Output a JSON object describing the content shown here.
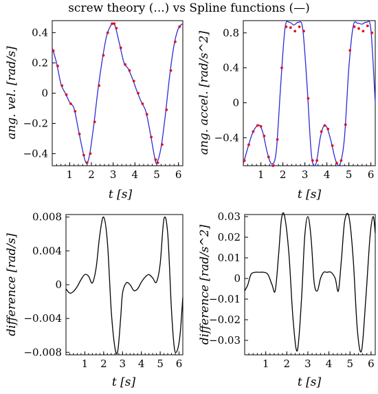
{
  "title": "screw theory (...) vs Spline functions (—)",
  "chart_data": [
    {
      "type": "line",
      "xlabel": "t [s]",
      "ylabel": "ang. vel. [rad/s]",
      "xlim": [
        0.2,
        6.2
      ],
      "ylim": [
        -0.48,
        0.48
      ],
      "xticks": [
        "1",
        "2",
        "3",
        "4",
        "5",
        "6"
      ],
      "yticks": [
        "0.4",
        "0.2",
        "0",
        "-0.2",
        "-0.4"
      ],
      "series": [
        {
          "style": "line",
          "color": "#2b2bd6",
          "x": [
            0.2,
            0.4,
            0.6,
            0.8,
            1.0,
            1.2,
            1.4,
            1.6,
            1.75,
            1.9,
            2.1,
            2.3,
            2.5,
            2.7,
            2.9,
            3.0,
            3.1,
            3.3,
            3.5,
            3.7,
            3.9,
            4.1,
            4.3,
            4.5,
            4.7,
            4.9,
            5.0,
            5.2,
            5.4,
            5.6,
            5.8,
            6.0,
            6.2
          ],
          "y": [
            0.3,
            0.2,
            0.06,
            0.0,
            -0.06,
            -0.1,
            -0.24,
            -0.38,
            -0.46,
            -0.42,
            -0.22,
            0.02,
            0.22,
            0.38,
            0.45,
            0.46,
            0.44,
            0.32,
            0.2,
            0.16,
            0.09,
            0.01,
            -0.06,
            -0.12,
            -0.26,
            -0.42,
            -0.46,
            -0.36,
            -0.14,
            0.12,
            0.32,
            0.43,
            0.46
          ]
        },
        {
          "style": "dots",
          "color": "#e0101a",
          "x": [
            0.25,
            0.45,
            0.65,
            0.85,
            1.05,
            1.25,
            1.45,
            1.65,
            1.8,
            1.95,
            2.15,
            2.35,
            2.55,
            2.75,
            2.95,
            3.05,
            3.15,
            3.35,
            3.55,
            3.75,
            3.95,
            4.15,
            4.35,
            4.55,
            4.75,
            4.95,
            5.05,
            5.25,
            5.45,
            5.65,
            5.85,
            6.05
          ],
          "y": [
            0.28,
            0.18,
            0.05,
            -0.01,
            -0.07,
            -0.12,
            -0.27,
            -0.41,
            -0.46,
            -0.4,
            -0.19,
            0.05,
            0.25,
            0.4,
            0.46,
            0.46,
            0.43,
            0.3,
            0.19,
            0.15,
            0.08,
            0.0,
            -0.07,
            -0.14,
            -0.29,
            -0.44,
            -0.46,
            -0.34,
            -0.11,
            0.15,
            0.34,
            0.44
          ]
        }
      ]
    },
    {
      "type": "line",
      "xlabel": "t [s]",
      "ylabel": "ang. accel. [rad/s^2]",
      "xlim": [
        0.2,
        6.2
      ],
      "ylim": [
        -0.72,
        0.94
      ],
      "xticks": [
        "1",
        "2",
        "3",
        "4",
        "5",
        "6"
      ],
      "yticks": [
        "0.8",
        "0.4",
        "0",
        "-0.4"
      ],
      "series": [
        {
          "style": "line",
          "color": "#2b2bd6",
          "x": [
            0.2,
            0.4,
            0.6,
            0.8,
            0.95,
            1.1,
            1.3,
            1.5,
            1.7,
            1.9,
            2.1,
            2.3,
            2.5,
            2.7,
            2.9,
            3.1,
            3.3,
            3.5,
            3.7,
            3.85,
            4.0,
            4.2,
            4.4,
            4.6,
            4.8,
            5.0,
            5.2,
            5.4,
            5.6,
            5.8,
            6.0,
            6.2
          ],
          "y": [
            -0.7,
            -0.52,
            -0.36,
            -0.27,
            -0.26,
            -0.35,
            -0.58,
            -0.7,
            -0.55,
            0.2,
            0.86,
            0.92,
            0.89,
            0.92,
            0.85,
            0.2,
            -0.6,
            -0.7,
            -0.4,
            -0.27,
            -0.28,
            -0.45,
            -0.66,
            -0.7,
            -0.4,
            0.4,
            0.88,
            0.91,
            0.9,
            0.92,
            0.84,
            0.0
          ]
        },
        {
          "style": "dots",
          "color": "#e0101a",
          "x": [
            0.25,
            0.45,
            0.65,
            0.85,
            1.0,
            1.15,
            1.35,
            1.55,
            1.75,
            1.95,
            2.15,
            2.35,
            2.55,
            2.75,
            2.95,
            3.15,
            3.35,
            3.55,
            3.75,
            3.9,
            4.05,
            4.25,
            4.45,
            4.65,
            4.85,
            5.05,
            5.25,
            5.45,
            5.65,
            5.85,
            6.05
          ],
          "y": [
            -0.66,
            -0.48,
            -0.33,
            -0.26,
            -0.27,
            -0.38,
            -0.62,
            -0.72,
            -0.42,
            0.4,
            0.87,
            0.86,
            0.82,
            0.87,
            0.82,
            0.05,
            -0.66,
            -0.66,
            -0.33,
            -0.26,
            -0.3,
            -0.49,
            -0.69,
            -0.66,
            -0.25,
            0.6,
            0.87,
            0.85,
            0.82,
            0.88,
            0.8
          ]
        }
      ]
    },
    {
      "type": "line",
      "xlabel": "t [s]",
      "ylabel": "difference [rad/s]",
      "xlim": [
        0.0,
        6.2
      ],
      "ylim": [
        -0.0083,
        0.0083
      ],
      "xticks": [
        "1",
        "2",
        "3",
        "4",
        "5",
        "6"
      ],
      "yticks": [
        "0.008",
        "0.004",
        "0",
        "-0.004",
        "-0.008"
      ],
      "series": [
        {
          "style": "line",
          "color": "#000000",
          "x": [
            0.0,
            0.2,
            0.4,
            0.6,
            0.8,
            1.0,
            1.2,
            1.4,
            1.6,
            1.8,
            2.0,
            2.2,
            2.4,
            2.6,
            2.75,
            2.9,
            3.0,
            3.2,
            3.4,
            3.6,
            3.8,
            4.0,
            4.2,
            4.4,
            4.6,
            4.8,
            5.0,
            5.2,
            5.4,
            5.6,
            5.75,
            5.9,
            6.05,
            6.2
          ],
          "y": [
            -0.0005,
            -0.001,
            -0.0008,
            -0.0002,
            0.0006,
            0.0012,
            0.001,
            0.0002,
            0.002,
            0.006,
            0.008,
            0.005,
            -0.003,
            -0.0075,
            -0.0078,
            -0.004,
            -0.001,
            0.0002,
            0.0,
            -0.0007,
            -0.0005,
            0.0003,
            0.0009,
            0.0012,
            0.0008,
            0.0003,
            0.0025,
            0.0078,
            0.006,
            -0.003,
            -0.0075,
            -0.0078,
            -0.006,
            -0.0015
          ]
        }
      ]
    },
    {
      "type": "line",
      "xlabel": "t [s]",
      "ylabel": "difference [rad/s^2]",
      "xlim": [
        0.0,
        6.2
      ],
      "ylim": [
        -0.037,
        0.031
      ],
      "xticks": [
        "1",
        "2",
        "3",
        "4",
        "5",
        "6"
      ],
      "yticks": [
        "0.03",
        "0.02",
        "0.01",
        "0",
        "-0.01",
        "-0.02",
        "-0.03"
      ],
      "series": [
        {
          "style": "line",
          "color": "#000000",
          "x": [
            0.0,
            0.15,
            0.3,
            0.5,
            0.7,
            0.9,
            1.1,
            1.3,
            1.45,
            1.6,
            1.75,
            1.9,
            2.1,
            2.3,
            2.5,
            2.7,
            2.85,
            3.0,
            3.15,
            3.3,
            3.45,
            3.6,
            3.75,
            3.9,
            4.1,
            4.3,
            4.45,
            4.6,
            4.75,
            4.95,
            5.15,
            5.35,
            5.55,
            5.75,
            5.95,
            6.1,
            6.2
          ],
          "y": [
            -0.006,
            -0.003,
            0.002,
            0.003,
            0.003,
            0.003,
            0.002,
            -0.003,
            -0.006,
            0.01,
            0.029,
            0.03,
            0.012,
            -0.02,
            -0.035,
            -0.01,
            0.02,
            0.03,
            0.02,
            -0.002,
            -0.006,
            0.0,
            0.003,
            0.003,
            0.003,
            0.0,
            -0.006,
            0.01,
            0.028,
            0.03,
            0.01,
            -0.025,
            -0.035,
            -0.01,
            0.02,
            0.03,
            0.022
          ]
        }
      ]
    }
  ]
}
